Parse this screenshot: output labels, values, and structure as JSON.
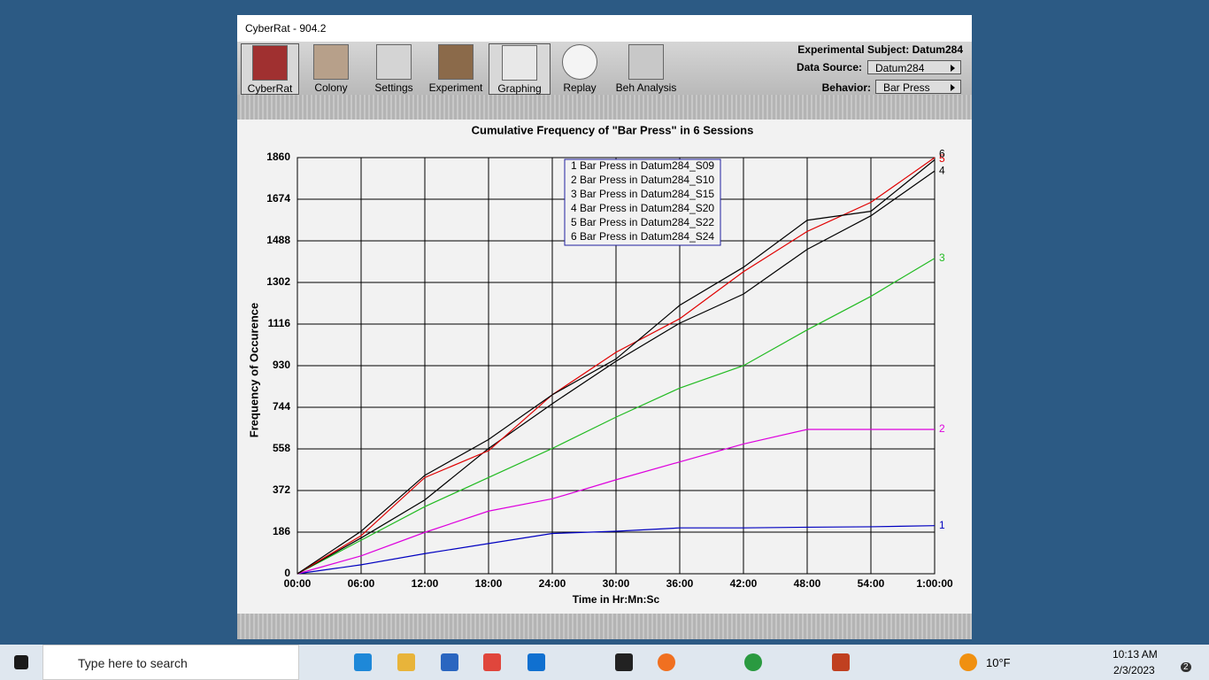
{
  "window": {
    "title": "CyberRat - 904.2"
  },
  "toolbar": {
    "buttons": [
      "CyberRat",
      "Colony",
      "Settings",
      "Experiment",
      "Graphing",
      "Replay",
      "Beh Analysis"
    ],
    "subject": "Experimental Subject: Datum284",
    "data_source_label": "Data Source:",
    "data_source": "Datum284",
    "behavior_label": "Behavior:",
    "behavior": "Bar Press"
  },
  "taskbar": {
    "search": "Type here to search",
    "weather": "10°F",
    "time": "10:13 AM",
    "date": "2/3/2023",
    "notifications": "2"
  },
  "chart_data": {
    "type": "line",
    "title": "Cumulative Frequency of \"Bar Press\" in 6 Sessions",
    "x_label": "Time in Hr:Mn:Sc",
    "y_label": "Frequency of Occurence",
    "x": [
      0,
      6,
      12,
      18,
      24,
      30,
      36,
      42,
      48,
      54,
      60
    ],
    "xlim": [
      0,
      60
    ],
    "xticks": [
      {
        "value": 0,
        "label": "00:00"
      },
      {
        "value": 6,
        "label": "06:00"
      },
      {
        "value": 12,
        "label": "12:00"
      },
      {
        "value": 18,
        "label": "18:00"
      },
      {
        "value": 24,
        "label": "24:00"
      },
      {
        "value": 30,
        "label": "30:00"
      },
      {
        "value": 36,
        "label": "36:00"
      },
      {
        "value": 42,
        "label": "42:00"
      },
      {
        "value": 48,
        "label": "48:00"
      },
      {
        "value": 54,
        "label": "54:00"
      },
      {
        "value": 60,
        "label": "1:00:00"
      }
    ],
    "ylim": [
      0,
      1860
    ],
    "yticks": [
      0,
      186,
      372,
      558,
      744,
      930,
      1116,
      1302,
      1488,
      1674,
      1860
    ],
    "grid": true,
    "series": [
      {
        "name": "1 Bar Press in Datum284_S09",
        "label": "1",
        "color": "#0000c0",
        "values": [
          0,
          40,
          90,
          135,
          180,
          190,
          205,
          205,
          208,
          210,
          215
        ]
      },
      {
        "name": "2 Bar Press in Datum284_S10",
        "label": "2",
        "color": "#dd00dd",
        "values": [
          0,
          80,
          185,
          280,
          335,
          420,
          500,
          580,
          645,
          645,
          645
        ]
      },
      {
        "name": "3 Bar Press in Datum284_S15",
        "label": "3",
        "color": "#22bb22",
        "values": [
          0,
          150,
          300,
          430,
          560,
          700,
          830,
          930,
          1090,
          1240,
          1410
        ]
      },
      {
        "name": "4 Bar Press in Datum284_S20",
        "label": "4",
        "color": "#000000",
        "values": [
          0,
          160,
          330,
          560,
          760,
          950,
          1120,
          1250,
          1450,
          1600,
          1800
        ]
      },
      {
        "name": "5 Bar Press in Datum284_S22",
        "label": "5",
        "color": "#e00000",
        "values": [
          0,
          170,
          430,
          550,
          800,
          990,
          1140,
          1350,
          1530,
          1660,
          1860
        ]
      },
      {
        "name": "6 Bar Press in Datum284_S24",
        "label": "6",
        "color": "#000000",
        "values": [
          0,
          190,
          440,
          600,
          800,
          960,
          1200,
          1370,
          1580,
          1620,
          1850
        ]
      }
    ]
  }
}
